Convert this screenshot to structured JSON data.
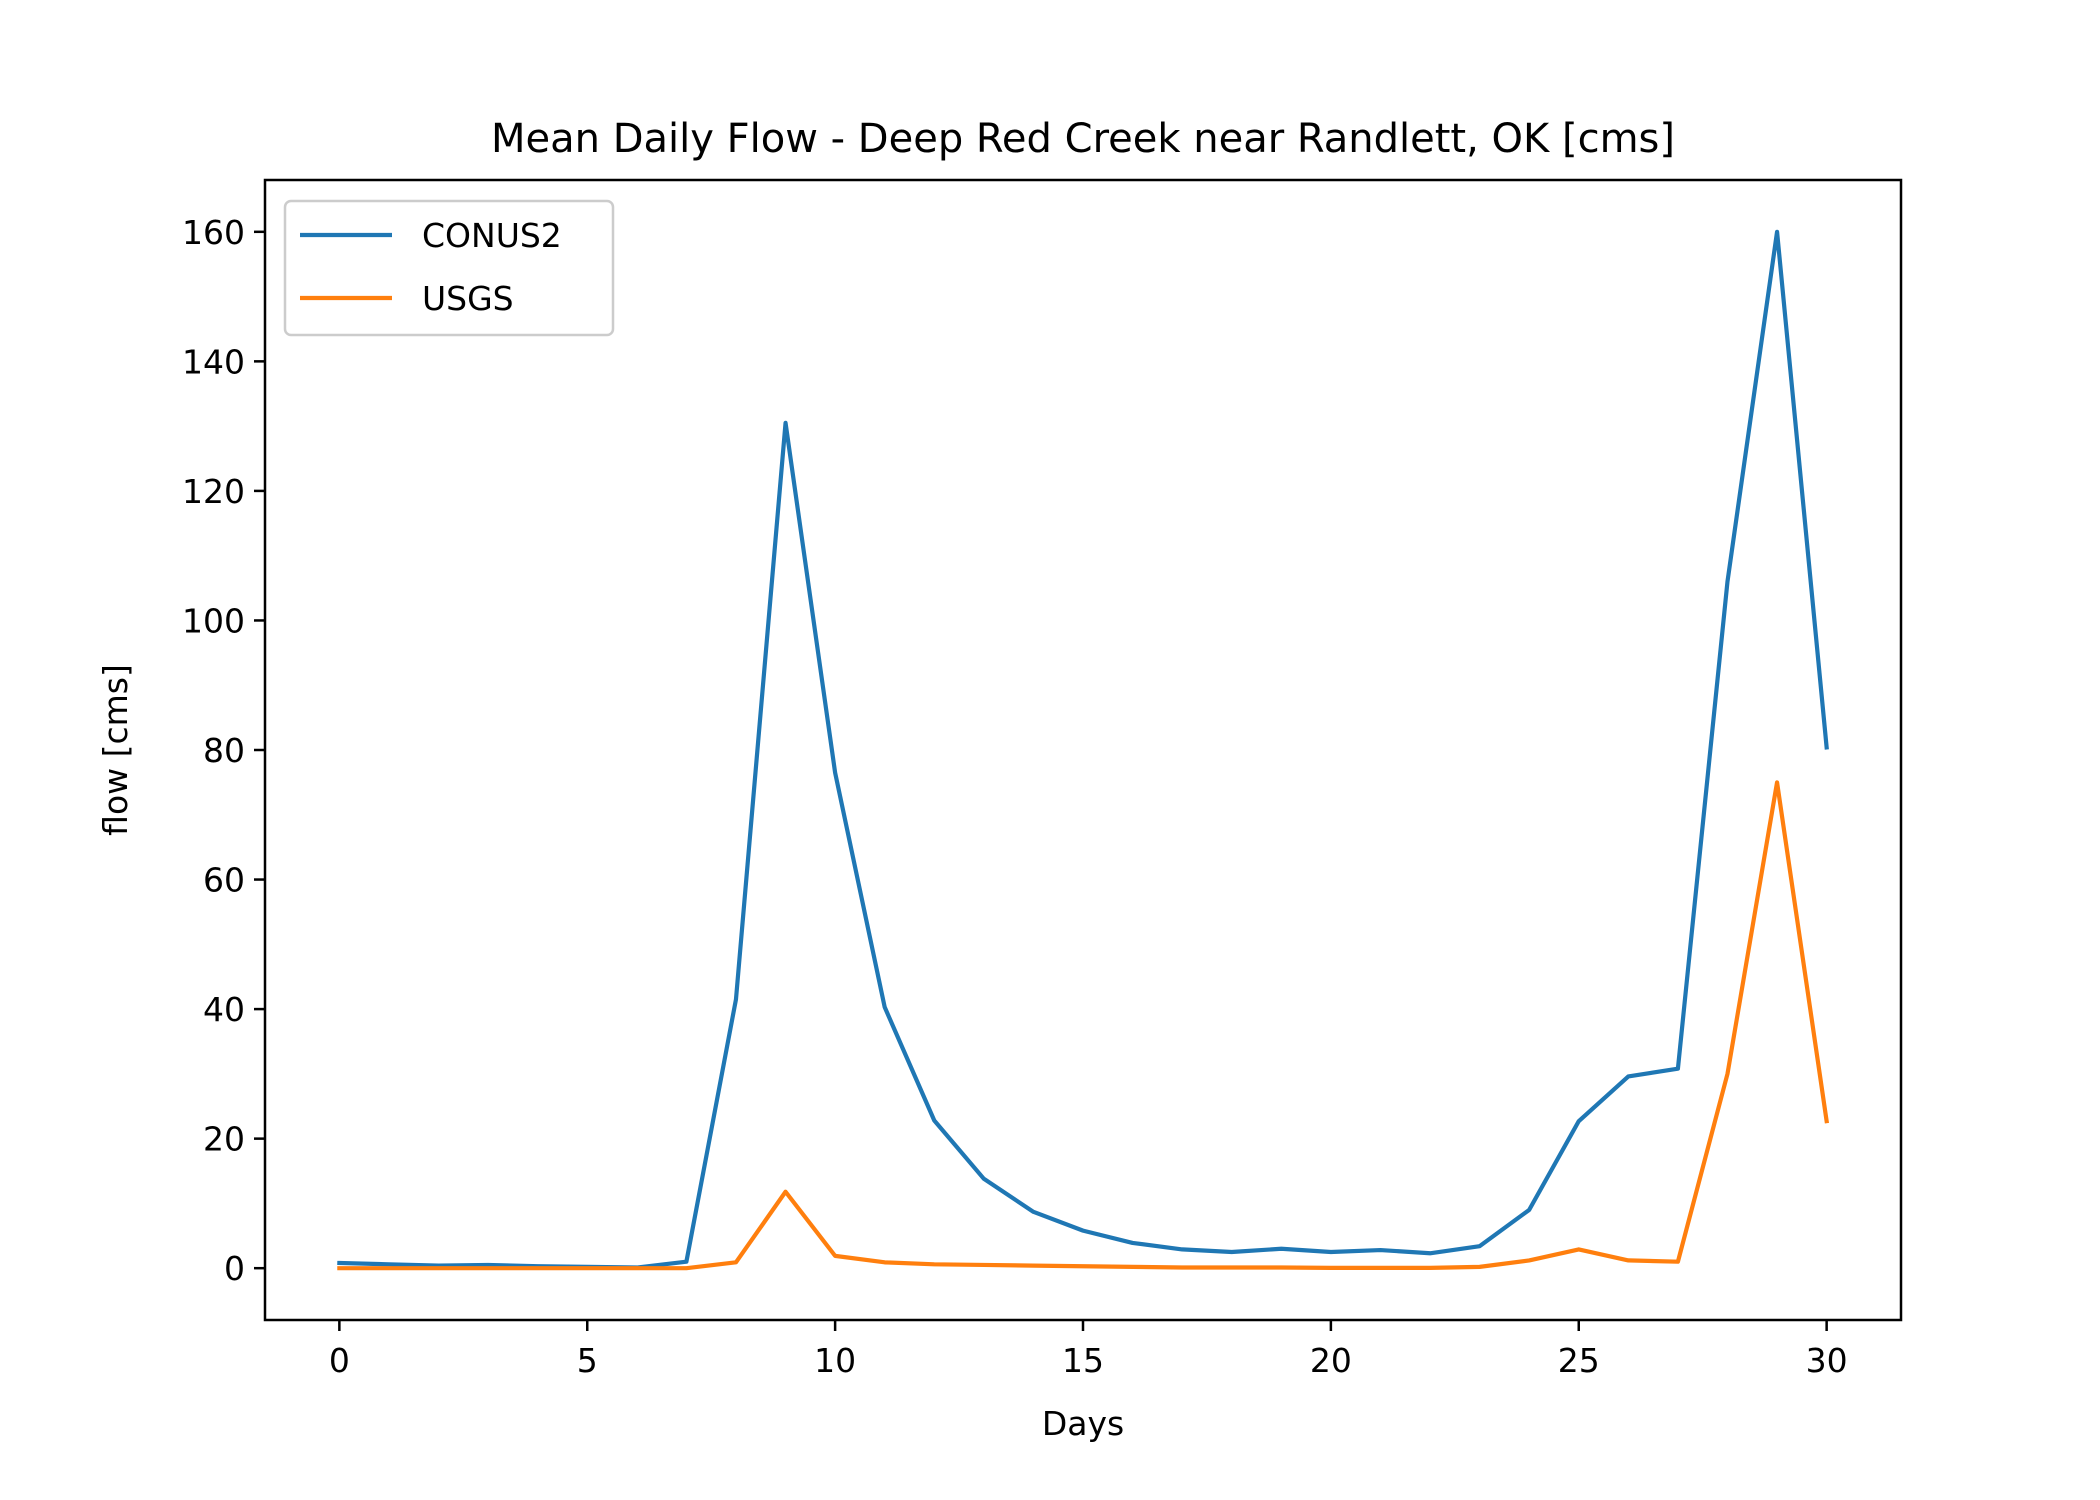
{
  "chart_data": {
    "type": "line",
    "title": "Mean Daily Flow - Deep Red Creek near Randlett, OK [cms]",
    "xlabel": "Days",
    "ylabel": "flow [cms]",
    "xlim": [
      -1.5,
      31.5
    ],
    "ylim": [
      -8,
      168
    ],
    "xticks": [
      0,
      5,
      10,
      15,
      20,
      25,
      30
    ],
    "yticks": [
      0,
      20,
      40,
      60,
      80,
      100,
      120,
      140,
      160
    ],
    "grid": false,
    "legend_position": "top-left",
    "x": [
      0,
      1,
      2,
      3,
      4,
      5,
      6,
      7,
      8,
      9,
      10,
      11,
      12,
      13,
      14,
      15,
      16,
      17,
      18,
      19,
      20,
      21,
      22,
      23,
      24,
      25,
      26,
      27,
      28,
      29,
      30
    ],
    "series": [
      {
        "name": "CONUS2",
        "color": "#1f77b4",
        "values": [
          0.8,
          0.6,
          0.4,
          0.5,
          0.3,
          0.2,
          0.1,
          1.0,
          41.5,
          130.5,
          76.5,
          40.3,
          22.8,
          13.8,
          8.7,
          5.8,
          3.9,
          2.9,
          2.5,
          3.0,
          2.5,
          2.8,
          2.3,
          3.4,
          9.0,
          22.7,
          29.6,
          30.8,
          106,
          160,
          80.4
        ]
      },
      {
        "name": "USGS",
        "color": "#ff7f0e",
        "values": [
          0.0,
          0.0,
          0.0,
          0.0,
          0.0,
          0.0,
          0.0,
          0.0,
          0.9,
          11.8,
          1.9,
          0.9,
          0.6,
          0.5,
          0.4,
          0.3,
          0.2,
          0.1,
          0.1,
          0.1,
          0.05,
          0.05,
          0.05,
          0.2,
          1.2,
          2.9,
          1.2,
          1.0,
          30.0,
          75.0,
          22.7
        ]
      }
    ]
  }
}
